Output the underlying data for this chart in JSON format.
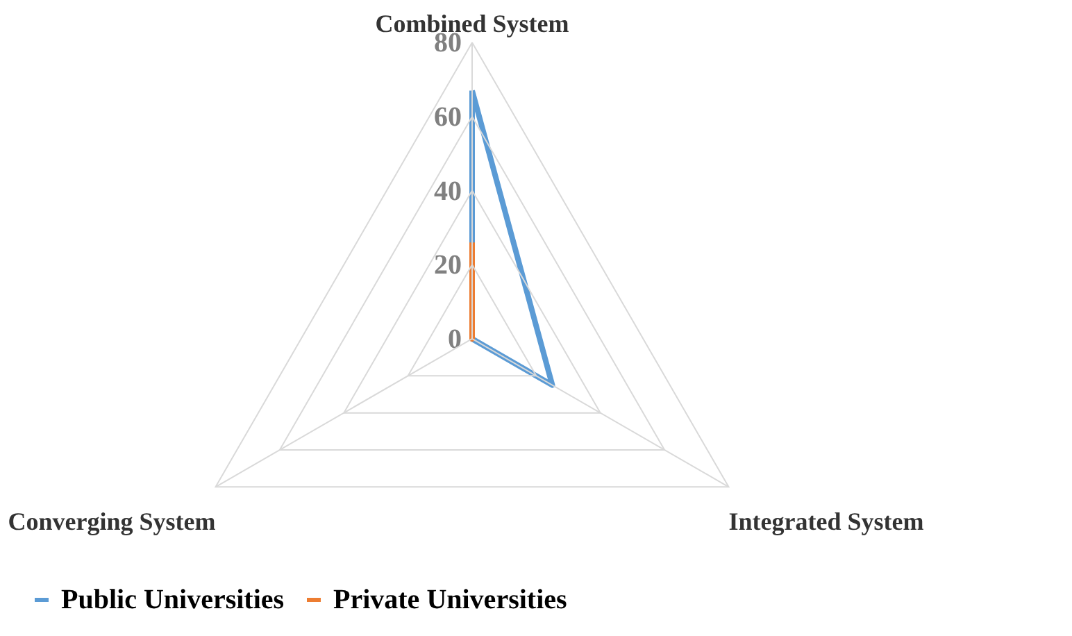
{
  "chart_data": {
    "type": "radar",
    "categories": [
      "Combined System",
      "Integrated System",
      "Converging System"
    ],
    "ylim": [
      0,
      80
    ],
    "yticks": [
      0,
      20,
      40,
      60,
      80
    ],
    "grid": true,
    "legend": "bottom",
    "series": [
      {
        "name": "Public Universities",
        "color": "#5b9bd5",
        "values": [
          67,
          25,
          0
        ]
      },
      {
        "name": "Private Universities",
        "color": "#ed7d31",
        "values": [
          26,
          0,
          0
        ]
      }
    ]
  }
}
